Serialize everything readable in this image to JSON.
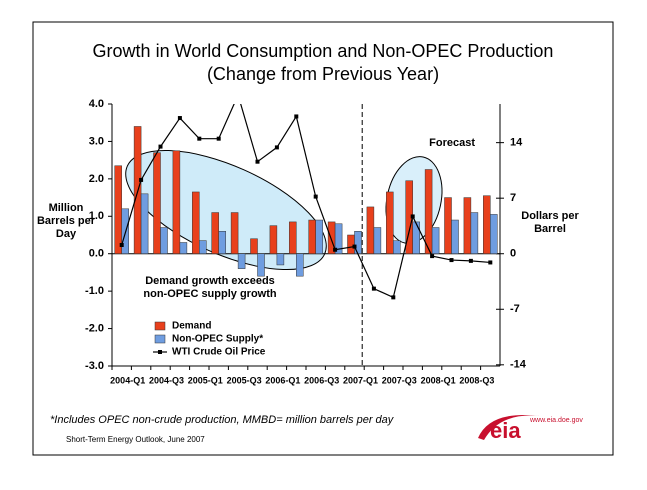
{
  "chart_data": {
    "type": "bar",
    "title": "Growth in World Consumption and Non-OPEC Production",
    "subtitle": "(Change from Previous Year)",
    "y_label": "Million Barrels per Day",
    "y2_label": "Dollars per Barrel",
    "categories": [
      "2004-Q1",
      null,
      "2004-Q3",
      null,
      "2005-Q1",
      null,
      "2005-Q3",
      null,
      "2006-Q1",
      null,
      "2006-Q3",
      null,
      "2007-Q1",
      null,
      "2007-Q3",
      null,
      "2008-Q1",
      null,
      "2008-Q3",
      null
    ],
    "series": [
      {
        "name": "Demand",
        "color": "#e8401c",
        "values": [
          2.35,
          3.4,
          2.7,
          2.75,
          1.65,
          1.1,
          1.1,
          0.4,
          0.75,
          0.85,
          0.9,
          0.85,
          0.5,
          1.25,
          1.65,
          1.95,
          2.25,
          1.5,
          1.5,
          1.55
        ]
      },
      {
        "name": "Non-OPEC Supply*",
        "color": "#6f9de0",
        "values": [
          1.2,
          1.6,
          0.7,
          0.3,
          0.35,
          0.6,
          -0.4,
          -0.6,
          -0.3,
          -0.6,
          0.9,
          0.8,
          0.6,
          0.7,
          0.35,
          0.85,
          0.7,
          0.9,
          1.1,
          1.05
        ]
      },
      {
        "name": "WTI Crude Oil Price",
        "color": "#000000",
        "type": "line",
        "axis": "y2",
        "values": [
          1.1,
          9.3,
          13.5,
          17.1,
          14.5,
          14.5,
          20,
          11.6,
          13.4,
          17.3,
          7.2,
          0.5,
          0.9,
          -4.4,
          -5.5,
          4.7,
          -0.3,
          -0.8,
          -0.9,
          -1.1
        ]
      }
    ],
    "ylim": [
      -3,
      4
    ],
    "yticks": [
      {
        "value": -3,
        "label": "-3.0"
      },
      {
        "value": -2,
        "label": "-2.0"
      },
      {
        "value": -1,
        "label": "-1.0"
      },
      {
        "value": 0,
        "label": "0.0"
      },
      {
        "value": 1,
        "label": "1.0"
      },
      {
        "value": 2,
        "label": "2.0"
      },
      {
        "value": 3,
        "label": "3.0"
      },
      {
        "value": 4,
        "label": "4.0"
      }
    ],
    "y2lim": [
      -14.15,
      18.87
    ],
    "y2ticks": [
      -14,
      -7,
      0,
      7,
      14
    ],
    "forecast_label": "Forecast",
    "annotation": "Demand growth exceeds non-OPEC supply growth",
    "footnote": "*Includes OPEC non-crude production, MMBD= million barrels per day",
    "source": "Short-Term Energy Outlook, June 2007",
    "logo_text": "eia",
    "logo_url": "www.eia.doe.gov"
  }
}
